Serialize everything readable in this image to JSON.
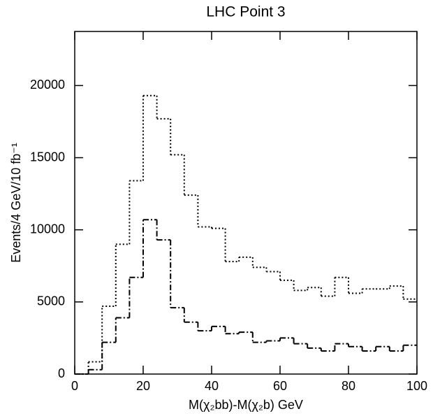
{
  "chart_data": {
    "type": "histogram",
    "title": "LHC Point 3",
    "x_label": "M(χ₂bb)-M(χ₂b)  GeV",
    "y_label": "Events/4 GeV/10 fb⁻¹",
    "bins": [
      0,
      4,
      8,
      12,
      16,
      20,
      24,
      28,
      32,
      36,
      40,
      44,
      48,
      52,
      56,
      60,
      64,
      68,
      72,
      76,
      80,
      84,
      88,
      92,
      96,
      100
    ],
    "series": [
      {
        "color": "#000000",
        "linestyle": "dotted",
        "values": [
          0,
          850,
          4700,
          9000,
          13400,
          19300,
          17700,
          15200,
          12400,
          10200,
          10100,
          7800,
          8100,
          7400,
          7100,
          6500,
          5800,
          6000,
          5400,
          6700,
          5600,
          5900,
          5900,
          6100,
          5200
        ]
      },
      {
        "color": "#000000",
        "linestyle": "dashdot",
        "values": [
          0,
          300,
          2200,
          3900,
          6700,
          10700,
          9300,
          4600,
          3600,
          3000,
          3300,
          2800,
          2900,
          2200,
          2300,
          2500,
          2100,
          1800,
          1600,
          2100,
          1900,
          1600,
          1900,
          1600,
          2000
        ]
      }
    ],
    "xlim": [
      0,
      100
    ],
    "xticks": [
      0,
      20,
      40,
      60,
      80,
      100
    ],
    "ylim": [
      0,
      23750
    ],
    "yticks": [
      0,
      5000,
      10000,
      15000,
      20000
    ]
  }
}
